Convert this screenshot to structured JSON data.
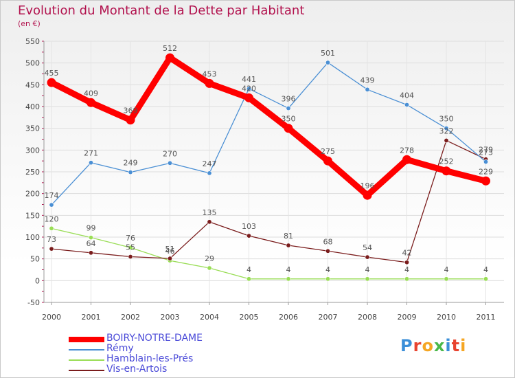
{
  "chart_data": {
    "type": "line",
    "title": "Evolution du Montant de la Dette par Habitant",
    "subtitle": "(en €)",
    "x": [
      2000,
      2001,
      2002,
      2003,
      2004,
      2005,
      2006,
      2007,
      2008,
      2009,
      2010,
      2011
    ],
    "ylim": [
      -50,
      550
    ],
    "yticks": [
      -50,
      0,
      50,
      100,
      150,
      200,
      250,
      300,
      350,
      400,
      450,
      500,
      550
    ],
    "grid": true,
    "legend_position": "bottom-left",
    "series": [
      {
        "name": "BOIRY-NOTRE-DAME",
        "color": "#ff0000",
        "values": [
          455,
          409,
          369,
          512,
          453,
          420,
          350,
          275,
          196,
          278,
          252,
          229
        ]
      },
      {
        "name": "Rémy",
        "color": "#4a8fd4",
        "values": [
          174,
          271,
          249,
          270,
          247,
          441,
          396,
          501,
          439,
          404,
          350,
          273
        ]
      },
      {
        "name": "Hamblain-les-Prés",
        "color": "#99dd55",
        "values": [
          120,
          99,
          76,
          46,
          29,
          4,
          4,
          4,
          4,
          4,
          4,
          4
        ]
      },
      {
        "name": "Vis-en-Artois",
        "color": "#7a1c1c",
        "values": [
          73,
          64,
          55,
          51,
          135,
          103,
          81,
          68,
          54,
          42,
          322,
          279
        ]
      }
    ]
  },
  "logo": {
    "text": "Proxiti"
  }
}
